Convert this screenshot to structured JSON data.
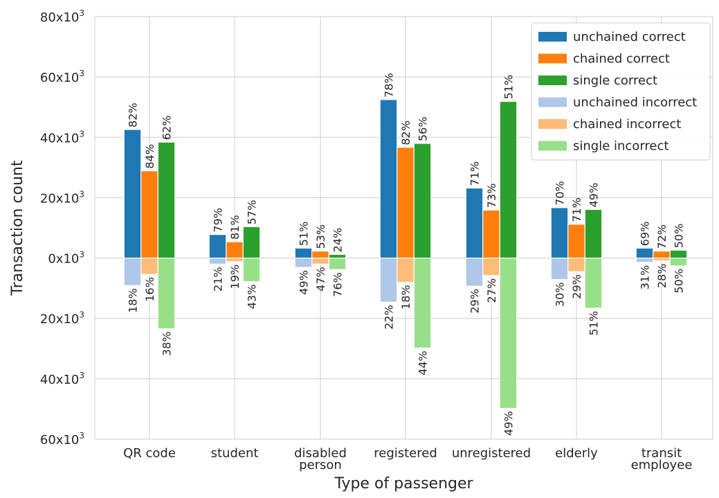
{
  "chart_data": {
    "type": "bar",
    "xlabel": "Type of passenger",
    "ylabel": "Transaction count",
    "ylim": [
      -60000,
      80000
    ],
    "yticks": [
      {
        "value": 80000,
        "label": "80x10",
        "exp": "3"
      },
      {
        "value": 60000,
        "label": "60x10",
        "exp": "3"
      },
      {
        "value": 40000,
        "label": "40x10",
        "exp": "3"
      },
      {
        "value": 20000,
        "label": "20x10",
        "exp": "3"
      },
      {
        "value": 0,
        "label": "0x10",
        "exp": "3"
      },
      {
        "value": -20000,
        "label": "20x10",
        "exp": "3"
      },
      {
        "value": -40000,
        "label": "40x10",
        "exp": "3"
      },
      {
        "value": -60000,
        "label": "60x10",
        "exp": "3"
      }
    ],
    "grid": true,
    "legend_position": "top-right",
    "categories": [
      {
        "lines": [
          "QR code"
        ]
      },
      {
        "lines": [
          "student"
        ]
      },
      {
        "lines": [
          "disabled",
          "person"
        ]
      },
      {
        "lines": [
          "registered"
        ]
      },
      {
        "lines": [
          "unregistered"
        ]
      },
      {
        "lines": [
          "elderly"
        ]
      },
      {
        "lines": [
          "transit",
          "employee"
        ]
      }
    ],
    "series": [
      {
        "name": "unchained correct",
        "color": "#1f77b4",
        "values": [
          42600,
          7800,
          3300,
          52500,
          23200,
          16700,
          3300
        ],
        "labels": [
          "82%",
          "79%",
          "51%",
          "78%",
          "71%",
          "70%",
          "69%"
        ]
      },
      {
        "name": "chained correct",
        "color": "#ff7f0e",
        "values": [
          28900,
          5400,
          2300,
          36700,
          15900,
          11200,
          2300
        ],
        "labels": [
          "84%",
          "81%",
          "53%",
          "82%",
          "73%",
          "71%",
          "72%"
        ]
      },
      {
        "name": "single correct",
        "color": "#2ca02c",
        "values": [
          38400,
          10400,
          1200,
          38000,
          51900,
          16100,
          2600
        ],
        "labels": [
          "62%",
          "57%",
          "24%",
          "56%",
          "51%",
          "49%",
          "50%"
        ]
      },
      {
        "name": "unchained incorrect",
        "color": "#aec7e8",
        "values": [
          -9100,
          -2000,
          -3100,
          -14600,
          -9300,
          -7100,
          -1400
        ],
        "labels": [
          "18%",
          "21%",
          "49%",
          "22%",
          "29%",
          "30%",
          "31%"
        ]
      },
      {
        "name": "chained incorrect",
        "color": "#ffbb78",
        "values": [
          -5400,
          -1200,
          -2000,
          -8000,
          -5800,
          -4500,
          -900
        ],
        "labels": [
          "16%",
          "19%",
          "47%",
          "18%",
          "27%",
          "29%",
          "28%"
        ]
      },
      {
        "name": "single incorrect",
        "color": "#98df8a",
        "values": [
          -23400,
          -7800,
          -3800,
          -29800,
          -49800,
          -16600,
          -2600
        ],
        "labels": [
          "38%",
          "43%",
          "76%",
          "44%",
          "49%",
          "51%",
          "50%"
        ]
      }
    ]
  }
}
